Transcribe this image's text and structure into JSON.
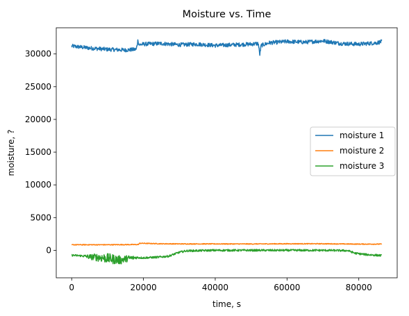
{
  "chart_data": {
    "type": "line",
    "title": "Moisture vs. Time",
    "xlabel": "time, s",
    "ylabel": "moisture, ?",
    "xlim": [
      -4300,
      90700
    ],
    "ylim": [
      -4200,
      34000
    ],
    "xticks": [
      0,
      20000,
      40000,
      60000,
      80000
    ],
    "xtick_labels": [
      "0",
      "20000",
      "40000",
      "60000",
      "80000"
    ],
    "yticks": [
      0,
      5000,
      10000,
      15000,
      20000,
      25000,
      30000
    ],
    "ytick_labels": [
      "0",
      "5000",
      "10000",
      "15000",
      "20000",
      "25000",
      "30000"
    ],
    "grid": false,
    "legend": {
      "placement": "center-right"
    },
    "series": [
      {
        "name": "moisture 1",
        "color": "#1f77b4",
        "x": [
          0,
          5000,
          10000,
          15000,
          18000,
          18500,
          18700,
          20000,
          25000,
          30000,
          35000,
          40000,
          45000,
          50000,
          52000,
          52400,
          52800,
          55000,
          60000,
          65000,
          70000,
          75000,
          80000,
          85000,
          86400
        ],
        "y": [
          31200,
          30900,
          30700,
          30600,
          30700,
          32200,
          31400,
          31500,
          31600,
          31400,
          31500,
          31300,
          31400,
          31500,
          31600,
          29900,
          31300,
          31700,
          31900,
          31800,
          32000,
          31600,
          31500,
          31700,
          31900
        ],
        "noise": 300
      },
      {
        "name": "moisture 2",
        "color": "#ff7f0e",
        "x": [
          0,
          5000,
          10000,
          15000,
          18500,
          19000,
          25000,
          30000,
          40000,
          50000,
          60000,
          70000,
          80000,
          86400
        ],
        "y": [
          850,
          850,
          850,
          870,
          880,
          1080,
          1000,
          980,
          980,
          970,
          1000,
          1000,
          950,
          950
        ],
        "noise": 60
      },
      {
        "name": "moisture 3",
        "color": "#2ca02c",
        "x": [
          0,
          3000,
          5000,
          8000,
          11000,
          13500,
          16000,
          18000,
          20000,
          24000,
          27000,
          30000,
          32000,
          40000,
          50000,
          60000,
          70000,
          77000,
          79000,
          82000,
          86400
        ],
        "y": [
          -750,
          -850,
          -1000,
          -1100,
          -1300,
          -1500,
          -1200,
          -1100,
          -1150,
          -1050,
          -900,
          -300,
          -80,
          0,
          0,
          0,
          0,
          -50,
          -450,
          -650,
          -800
        ],
        "noise": 150
      }
    ]
  }
}
